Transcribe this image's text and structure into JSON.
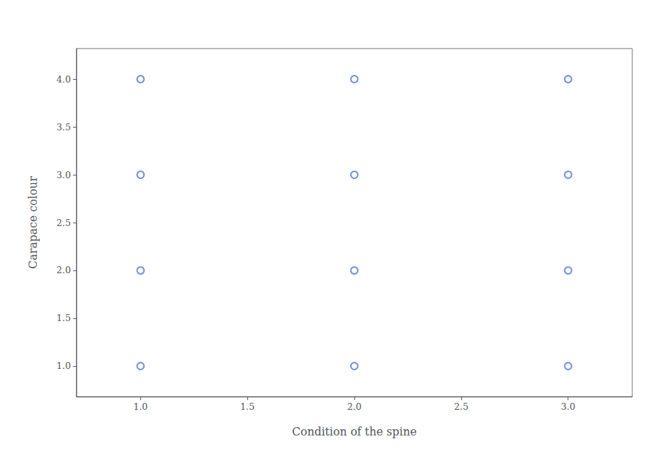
{
  "chart_data": {
    "type": "scatter",
    "x": [
      1,
      1,
      1,
      1,
      2,
      2,
      2,
      2,
      3,
      3,
      3,
      3
    ],
    "values": [
      1,
      2,
      3,
      4,
      1,
      2,
      3,
      4,
      1,
      2,
      3,
      4
    ],
    "xlabel": "Condition of the spine",
    "ylabel": "Carapace colour",
    "xlim": [
      0.7,
      3.3
    ],
    "ylim": [
      0.68,
      4.32
    ],
    "xticks": [
      {
        "value": 1,
        "label": "1.0"
      },
      1.5,
      {
        "value": 2,
        "label": "2.0"
      },
      2.5,
      {
        "value": 3,
        "label": "3.0"
      }
    ],
    "yticks": [
      {
        "value": 1,
        "label": "1.0"
      },
      1.5,
      {
        "value": 2,
        "label": "2.0"
      },
      2.5,
      {
        "value": 3,
        "label": "3.0"
      },
      3.5,
      {
        "value": 4,
        "label": "4.0"
      }
    ],
    "marker": "circle",
    "grid": false
  }
}
